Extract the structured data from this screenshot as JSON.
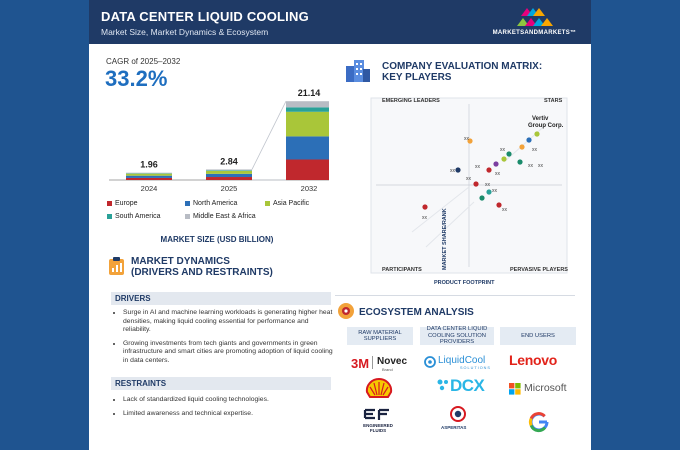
{
  "header": {
    "title": "DATA CENTER LIQUID COOLING",
    "subtitle": "Market Size, Market Dynamics & Ecosystem",
    "brand": "MARKETSANDMARKETS™"
  },
  "cagr": {
    "label": "CAGR of 2025–2032",
    "value": "33.2%"
  },
  "chart_data": {
    "type": "bar",
    "stacked": true,
    "categories": [
      "2024",
      "2025",
      "2032"
    ],
    "totals": [
      "1.96",
      "2.84",
      "21.14"
    ],
    "series": [
      {
        "name": "Europe",
        "color": "#c0282d",
        "values": [
          0.55,
          0.8,
          5.5
        ]
      },
      {
        "name": "North America",
        "color": "#2c6fb7",
        "values": [
          0.6,
          0.85,
          6.2
        ]
      },
      {
        "name": "Asia Pacific",
        "color": "#a9c639",
        "values": [
          0.55,
          0.8,
          6.6
        ]
      },
      {
        "name": "South America",
        "color": "#2aa198",
        "values": [
          0.12,
          0.17,
          1.2
        ]
      },
      {
        "name": "Middle East & Africa",
        "color": "#b8bcc4",
        "values": [
          0.14,
          0.22,
          1.64
        ]
      }
    ],
    "xlabel": "MARKET SIZE (USD BILLION)",
    "ylim": [
      0,
      22
    ]
  },
  "dynamics": {
    "title_line1": "MARKET DYNAMICS",
    "title_line2": "(DRIVERS AND RESTRAINTS)",
    "drivers_label": "DRIVERS",
    "drivers": [
      "Surge in AI and machine learning workloads is generating higher heat densities, making liquid cooling essential for performance and reliability.",
      "Growing investments from tech giants and governments in green infrastructure and smart cities are promoting adoption of liquid cooling in data centers."
    ],
    "restraints_label": "RESTRAINTS",
    "restraints": [
      "Lack of standardized liquid cooling technologies.",
      "Limited awareness and technical expertise."
    ]
  },
  "matrix": {
    "title_line1": "COMPANY EVALUATION MATRIX:",
    "title_line2": "KEY PLAYERS",
    "q_emerging": "EMERGING LEADERS",
    "q_stars": "STARS",
    "q_participants": "PARTICIPANTS",
    "q_pervasive": "PERVASIVE PLAYERS",
    "axis_x": "PRODUCT FOOTPRINT",
    "axis_y": "MARKET SHARE/RANK",
    "highlight_line1": "Vertiv",
    "highlight_line2": "Group Corp.",
    "point_label": "xx"
  },
  "ecosystem": {
    "title": "ECOSYSTEM ANALYSIS",
    "col1": "RAW MATERIAL SUPPLIERS",
    "col2": "DATA CENTER LIQUID COOLING SOLUTION PROVIDERS",
    "col3": "END USERS",
    "logos": {
      "m3": "3M",
      "novec": "Novec",
      "novec_sub": "Brand",
      "liquidcool": "LiquidCool",
      "liquidcool_sub": "SOLUTIONS",
      "lenovo": "Lenovo",
      "microsoft": "Microsoft",
      "dcx": "DCX",
      "ef": "EF",
      "ef_sub1": "ENGINEERED",
      "ef_sub2": "FLUIDS",
      "asperitas": "ASPERITAS"
    }
  }
}
